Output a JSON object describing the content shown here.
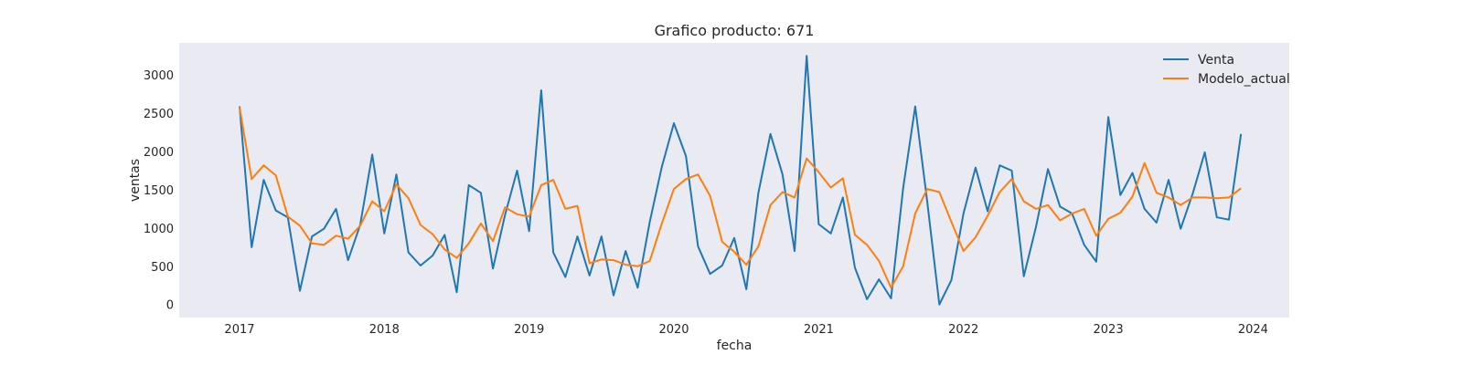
{
  "chart_data": {
    "type": "line",
    "title": "Grafico producto: 671",
    "xlabel": "fecha",
    "ylabel": "ventas",
    "x_tick_labels": [
      "2017",
      "2018",
      "2019",
      "2020",
      "2021",
      "2022",
      "2023",
      "2024"
    ],
    "y_tick_labels": [
      "0",
      "500",
      "1000",
      "1500",
      "2000",
      "2500",
      "3000"
    ],
    "ylim": [
      -170,
      3420
    ],
    "xlim": [
      "2016-08",
      "2024-04"
    ],
    "legend_position": "top-right",
    "grid": false,
    "background_color": "#eaeaf2",
    "x": [
      "2017-01",
      "2017-02",
      "2017-03",
      "2017-04",
      "2017-05",
      "2017-06",
      "2017-07",
      "2017-08",
      "2017-09",
      "2017-10",
      "2017-11",
      "2017-12",
      "2018-01",
      "2018-02",
      "2018-03",
      "2018-04",
      "2018-05",
      "2018-06",
      "2018-07",
      "2018-08",
      "2018-09",
      "2018-10",
      "2018-11",
      "2018-12",
      "2019-01",
      "2019-02",
      "2019-03",
      "2019-04",
      "2019-05",
      "2019-06",
      "2019-07",
      "2019-08",
      "2019-09",
      "2019-10",
      "2019-11",
      "2019-12",
      "2020-01",
      "2020-02",
      "2020-03",
      "2020-04",
      "2020-05",
      "2020-06",
      "2020-07",
      "2020-08",
      "2020-09",
      "2020-10",
      "2020-11",
      "2020-12",
      "2021-01",
      "2021-02",
      "2021-03",
      "2021-04",
      "2021-05",
      "2021-06",
      "2021-07",
      "2021-08",
      "2021-09",
      "2021-10",
      "2021-11",
      "2021-12",
      "2022-01",
      "2022-02",
      "2022-03",
      "2022-04",
      "2022-05",
      "2022-06",
      "2022-07",
      "2022-08",
      "2022-09",
      "2022-10",
      "2022-11",
      "2022-12",
      "2023-01",
      "2023-02",
      "2023-03",
      "2023-04",
      "2023-05",
      "2023-06",
      "2023-07",
      "2023-08",
      "2023-09",
      "2023-10",
      "2023-11",
      "2023-12"
    ],
    "series": [
      {
        "name": "Venta",
        "color": "#1f77b4",
        "values": [
          2590,
          750,
          1630,
          1230,
          1140,
          180,
          890,
          990,
          1250,
          580,
          1040,
          1960,
          930,
          1700,
          680,
          510,
          640,
          910,
          160,
          1560,
          1460,
          470,
          1170,
          1750,
          960,
          2800,
          680,
          360,
          890,
          380,
          890,
          120,
          700,
          220,
          1080,
          1800,
          2370,
          1940,
          760,
          400,
          510,
          870,
          200,
          1460,
          2230,
          1700,
          700,
          3250,
          1050,
          930,
          1400,
          480,
          70,
          330,
          80,
          1520,
          2590,
          1340,
          0,
          320,
          1190,
          1790,
          1220,
          1820,
          1750,
          370,
          1010,
          1770,
          1280,
          1190,
          780,
          560,
          2450,
          1430,
          1720,
          1250,
          1070,
          1630,
          990,
          1450,
          1990,
          1140,
          1110,
          2230
        ]
      },
      {
        "name": "Modelo_actual",
        "color": "#ff7f0e",
        "values": [
          2580,
          1640,
          1820,
          1690,
          1150,
          1030,
          800,
          780,
          900,
          860,
          1030,
          1350,
          1220,
          1570,
          1390,
          1040,
          920,
          720,
          610,
          800,
          1060,
          830,
          1270,
          1180,
          1150,
          1560,
          1630,
          1250,
          1290,
          540,
          590,
          580,
          520,
          500,
          570,
          1060,
          1510,
          1640,
          1700,
          1420,
          820,
          690,
          520,
          760,
          1300,
          1470,
          1400,
          1910,
          1730,
          1530,
          1650,
          910,
          780,
          570,
          220,
          500,
          1190,
          1510,
          1470,
          1080,
          700,
          880,
          1160,
          1470,
          1640,
          1350,
          1250,
          1300,
          1100,
          1190,
          1250,
          900,
          1120,
          1200,
          1410,
          1850,
          1460,
          1400,
          1300,
          1400,
          1400,
          1390,
          1400,
          1520
        ]
      }
    ]
  }
}
